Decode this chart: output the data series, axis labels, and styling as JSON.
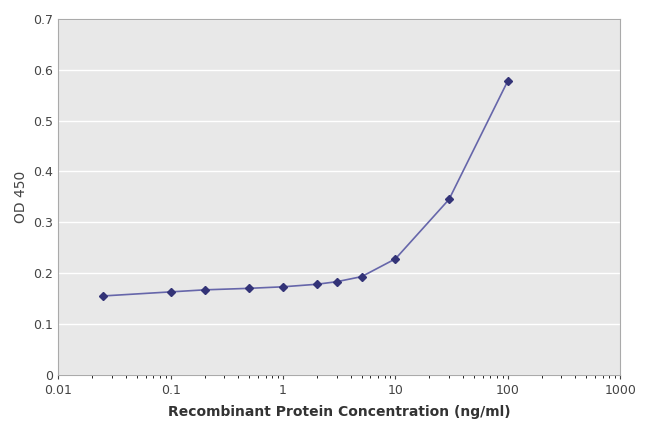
{
  "x_data": [
    0.025,
    0.1,
    0.2,
    0.5,
    1.0,
    2.0,
    3.0,
    5.0,
    10.0,
    30.0,
    100.0
  ],
  "y_data": [
    0.155,
    0.163,
    0.167,
    0.17,
    0.173,
    0.178,
    0.183,
    0.193,
    0.228,
    0.345,
    0.578
  ],
  "line_color": "#6666aa",
  "marker_color": "#333377",
  "marker_style": "D",
  "marker_size": 4,
  "line_width": 1.2,
  "xlabel": "Recombinant Protein Concentration (ng/ml)",
  "ylabel": "OD 450",
  "xlim_log": [
    0.01,
    1000
  ],
  "ylim": [
    0,
    0.7
  ],
  "yticks": [
    0,
    0.1,
    0.2,
    0.3,
    0.4,
    0.5,
    0.6,
    0.7
  ],
  "background_color": "#ffffff",
  "plot_bg_color": "#e8e8e8",
  "grid_color": "#ffffff",
  "grid_linewidth": 1.0,
  "label_fontsize": 10,
  "tick_fontsize": 9,
  "spine_color": "#aaaaaa"
}
